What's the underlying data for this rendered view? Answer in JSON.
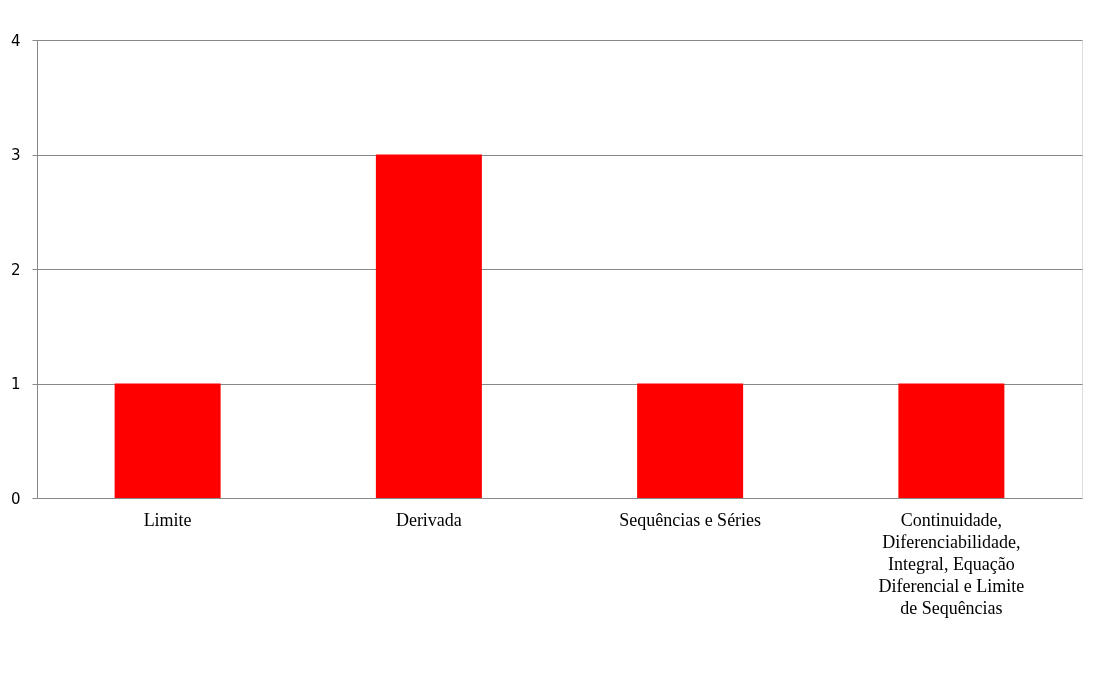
{
  "chart_data": {
    "type": "bar",
    "categories": [
      "Limite",
      "Derivada",
      "Sequências e Séries",
      "Continuidade, Diferenciabilidade, Integral, Equação Diferencial e Limite de Sequências"
    ],
    "values": [
      1,
      3,
      1,
      1
    ],
    "color": "#ff0000",
    "ylim": [
      0,
      4
    ],
    "yticks": [
      0,
      1,
      2,
      3,
      4
    ],
    "grid": "y"
  }
}
